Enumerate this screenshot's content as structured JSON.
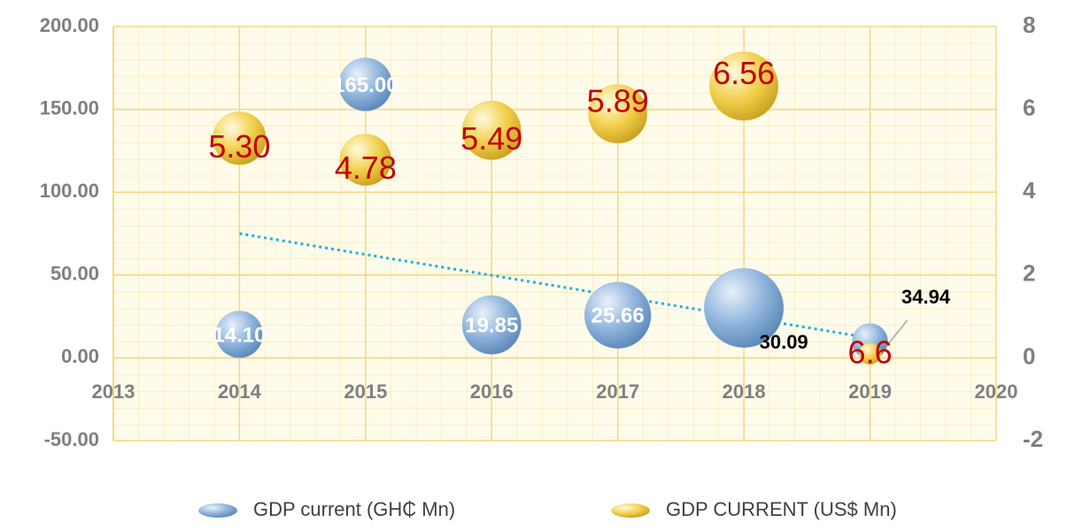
{
  "chart_data": {
    "type": "bubble",
    "x": [
      2014,
      2015,
      2016,
      2017,
      2018,
      2019
    ],
    "series": [
      {
        "name": "GDP current (GH₵ Mn)",
        "color": "#8fb4dc",
        "axis": "y",
        "values": [
          14.1,
          165.0,
          19.85,
          25.66,
          30.09,
          10
        ],
        "sizes": [
          7,
          9,
          11,
          14,
          20,
          4
        ],
        "value_labels": [
          "14.10",
          "165.00",
          "19.85",
          "25.66",
          "30.09",
          null
        ]
      },
      {
        "name": "GDP CURRENT (US$ Mn)",
        "color": "#f2cf4a",
        "axis": "y2",
        "values": [
          5.3,
          4.78,
          5.49,
          5.89,
          6.56,
          0.1
        ],
        "sizes": [
          9,
          8.5,
          11,
          11,
          15,
          1.5
        ],
        "value_labels": [
          "5.30",
          "4.78",
          "5.49",
          "5.89",
          "6.56",
          null
        ]
      }
    ],
    "trendline": {
      "color": "#1fb0e0",
      "x": [
        2014,
        2019
      ],
      "values": [
        75,
        12
      ]
    },
    "annotations": [
      {
        "text": "34.94"
      },
      {
        "text": "6.6"
      }
    ],
    "xlim": [
      2013,
      2020
    ],
    "xticks": [
      2013,
      2014,
      2015,
      2016,
      2017,
      2018,
      2019,
      2020
    ],
    "ylim": [
      -50,
      200
    ],
    "yticks": [
      {
        "value": -50,
        "label": "-50.00"
      },
      {
        "value": 0,
        "label": "0.00"
      },
      {
        "value": 50,
        "label": "50.00"
      },
      {
        "value": 100,
        "label": "100.00"
      },
      {
        "value": 150,
        "label": "150.00"
      },
      {
        "value": 200,
        "label": "200.00"
      }
    ],
    "y2lim": [
      -2,
      8
    ],
    "y2ticks": [
      -2,
      0,
      2,
      4,
      6,
      8
    ],
    "grid": true,
    "legend": "bottom"
  }
}
